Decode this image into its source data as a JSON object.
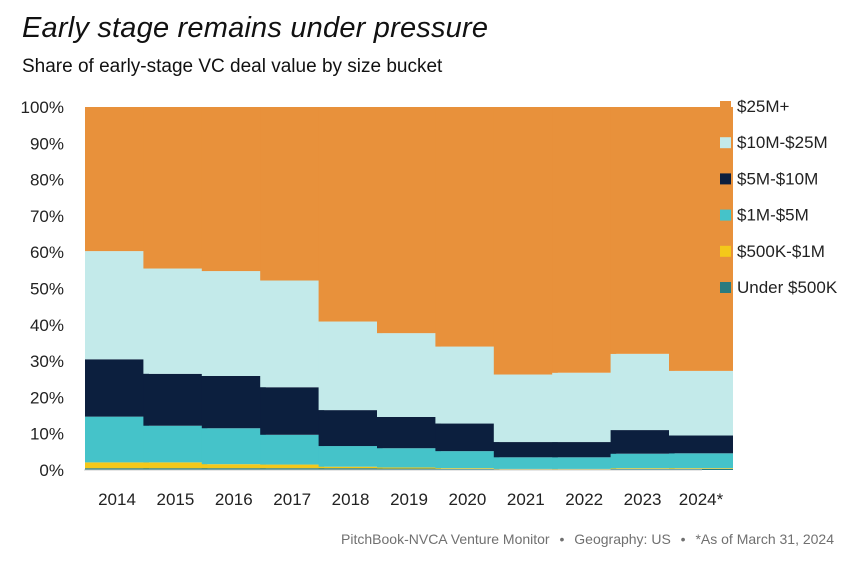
{
  "title": "Early stage remains under pressure",
  "subtitle": "Share of early-stage VC deal value by size bucket",
  "source": {
    "publisher": "PitchBook-NVCA Venture Monitor",
    "geography": "Geography: US",
    "note": "*As of March 31, 2024",
    "separator": "•"
  },
  "chart_data": {
    "type": "bar",
    "stacked": true,
    "title": "Early stage remains under pressure",
    "subtitle": "Share of early-stage VC deal value by size bucket",
    "xlabel": "",
    "ylabel": "",
    "ylim": [
      0,
      100
    ],
    "yticks": [
      0,
      10,
      20,
      30,
      40,
      50,
      60,
      70,
      80,
      90,
      100
    ],
    "ytick_labels": [
      "0%",
      "10%",
      "20%",
      "30%",
      "40%",
      "50%",
      "60%",
      "70%",
      "80%",
      "90%",
      "100%"
    ],
    "grid": false,
    "legend_position": "right",
    "categories": [
      "2014",
      "2015",
      "2016",
      "2017",
      "2018",
      "2019",
      "2020",
      "2021",
      "2022",
      "2023",
      "2024*"
    ],
    "series": [
      {
        "name": "Under $500K",
        "color": "#2a7b7f",
        "values": [
          0.5,
          0.5,
          0.5,
          0.5,
          0.5,
          0.4,
          0.3,
          0.2,
          0.2,
          0.3,
          0.3
        ]
      },
      {
        "name": "$500K-$1M",
        "color": "#f4c81a",
        "values": [
          1.6,
          1.6,
          1.1,
          1.0,
          0.4,
          0.3,
          0.2,
          0.1,
          0.1,
          0.2,
          0.2
        ]
      },
      {
        "name": "$1M-$5M",
        "color": "#45c3c9",
        "values": [
          12.6,
          10.1,
          9.9,
          8.2,
          5.7,
          5.3,
          4.7,
          3.2,
          3.2,
          4.0,
          4.1
        ]
      },
      {
        "name": "$5M-$10M",
        "color": "#0c1f3e",
        "values": [
          15.8,
          14.3,
          14.4,
          13.1,
          9.9,
          8.6,
          7.6,
          4.2,
          4.2,
          6.5,
          4.9
        ]
      },
      {
        "name": "$10M-$25M",
        "color": "#c3eaea",
        "values": [
          29.8,
          29.0,
          28.9,
          29.4,
          24.4,
          23.1,
          21.2,
          18.6,
          19.1,
          21.0,
          17.8
        ]
      },
      {
        "name": "$25M+",
        "color": "#e8913b",
        "values": [
          39.7,
          44.5,
          45.2,
          47.8,
          59.1,
          62.3,
          66.0,
          73.7,
          73.2,
          68.0,
          72.7
        ]
      }
    ]
  }
}
